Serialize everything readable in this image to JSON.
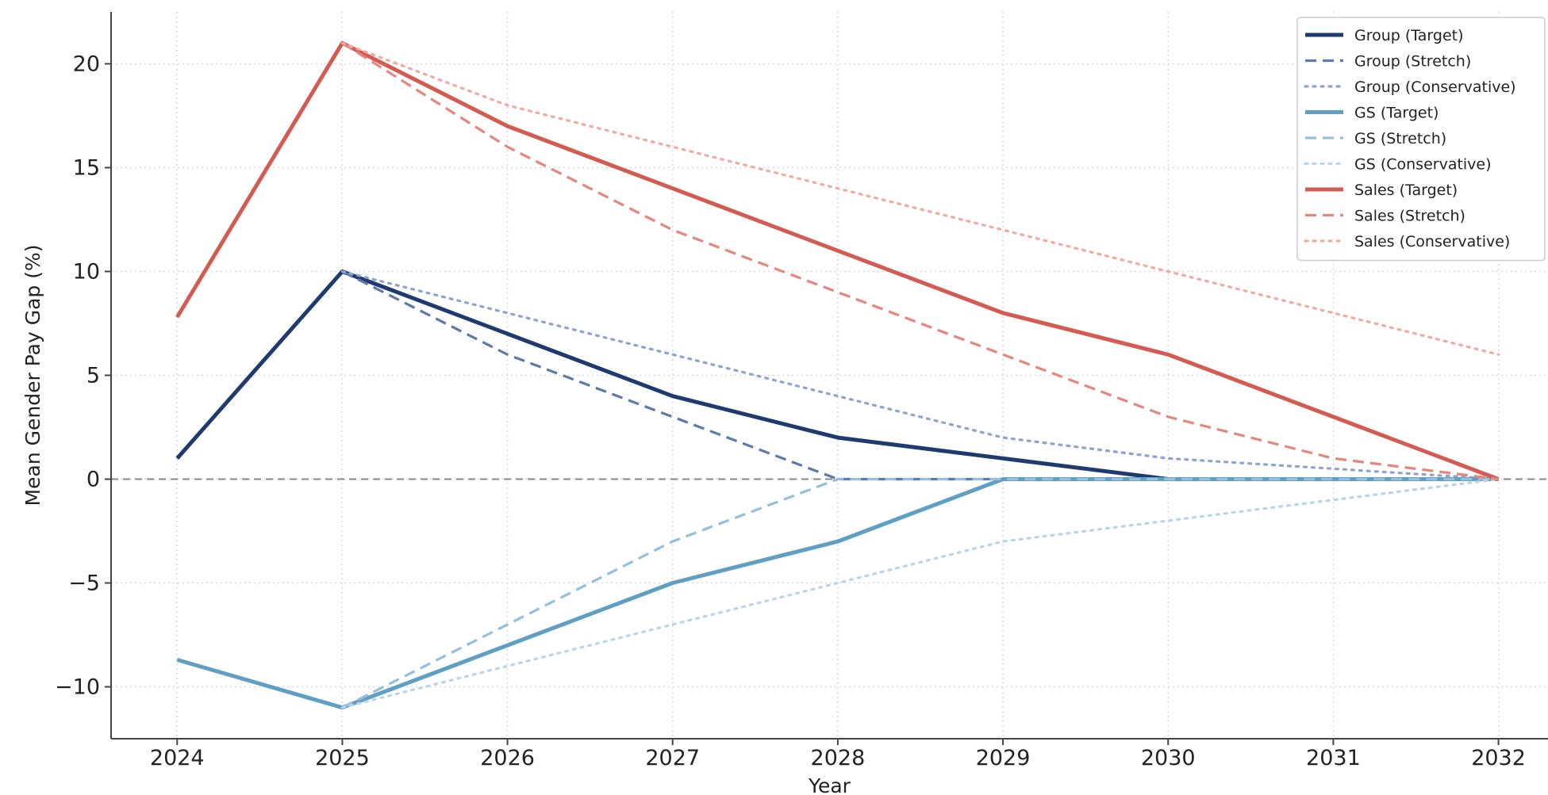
{
  "chart_data": {
    "type": "line",
    "title": "",
    "xlabel": "Year",
    "ylabel": "Mean Gender Pay Gap (%)",
    "x": [
      2024,
      2025,
      2026,
      2027,
      2028,
      2029,
      2030,
      2031,
      2032
    ],
    "xlim": [
      2023.6,
      2032.3
    ],
    "ylim": [
      -12.5,
      22.5
    ],
    "x_ticks": [
      "2024",
      "2025",
      "2026",
      "2027",
      "2028",
      "2029",
      "2030",
      "2031",
      "2032"
    ],
    "y_ticks": [
      20,
      15,
      10,
      5,
      0,
      -5,
      -10
    ],
    "y_tick_labels": [
      "20",
      "15",
      "10",
      "5",
      "0",
      "−5",
      "−10"
    ],
    "grid": true,
    "zero_line": true,
    "legend_position": "top-right",
    "series": [
      {
        "name": "Group (Target)",
        "color": "#1f3a6e",
        "style": "solid",
        "x": [
          2024,
          2025,
          2026,
          2027,
          2028,
          2029,
          2030,
          2031,
          2032
        ],
        "values": [
          1,
          10,
          7,
          4,
          2,
          1,
          0,
          0,
          0
        ]
      },
      {
        "name": "Group (Stretch)",
        "color": "#5f7aa8",
        "style": "dashed",
        "x": [
          2025,
          2026,
          2027,
          2028,
          2029,
          2030,
          2031,
          2032
        ],
        "values": [
          10,
          6,
          3,
          0,
          0,
          0,
          0,
          0
        ]
      },
      {
        "name": "Group (Conservative)",
        "color": "#8fa3cf",
        "style": "dotted",
        "x": [
          2025,
          2026,
          2027,
          2028,
          2029,
          2030,
          2031,
          2032
        ],
        "values": [
          10,
          8,
          6,
          4,
          2,
          1,
          0.5,
          0
        ]
      },
      {
        "name": "GS (Target)",
        "color": "#5f9fc4",
        "style": "solid",
        "x": [
          2024,
          2025,
          2026,
          2027,
          2028,
          2029,
          2030,
          2031,
          2032
        ],
        "values": [
          -8.7,
          -11,
          -8,
          -5,
          -3,
          0,
          0,
          0,
          0
        ]
      },
      {
        "name": "GS (Stretch)",
        "color": "#97bfdc",
        "style": "dashed",
        "x": [
          2025,
          2026,
          2027,
          2028,
          2029,
          2030,
          2031,
          2032
        ],
        "values": [
          -11,
          -7,
          -3,
          0,
          0,
          0,
          0,
          0
        ]
      },
      {
        "name": "GS (Conservative)",
        "color": "#bcd4e8",
        "style": "dotted",
        "x": [
          2025,
          2026,
          2027,
          2028,
          2029,
          2030,
          2031,
          2032
        ],
        "values": [
          -11,
          -9,
          -7,
          -5,
          -3,
          -2,
          -1,
          0
        ]
      },
      {
        "name": "Sales (Target)",
        "color": "#d45b52",
        "style": "solid",
        "x": [
          2024,
          2025,
          2026,
          2027,
          2028,
          2029,
          2030,
          2031,
          2032
        ],
        "values": [
          7.8,
          21,
          17,
          14,
          11,
          8,
          6,
          3,
          0
        ]
      },
      {
        "name": "Sales (Stretch)",
        "color": "#e6877f",
        "style": "dashed",
        "x": [
          2025,
          2026,
          2027,
          2028,
          2029,
          2030,
          2031,
          2032
        ],
        "values": [
          21,
          16,
          12,
          9,
          6,
          3,
          1,
          0
        ]
      },
      {
        "name": "Sales (Conservative)",
        "color": "#f1aaa4",
        "style": "dotted",
        "x": [
          2025,
          2026,
          2027,
          2028,
          2029,
          2030,
          2031,
          2032
        ],
        "values": [
          21,
          18,
          16,
          14,
          12,
          10,
          8,
          6
        ]
      }
    ]
  }
}
